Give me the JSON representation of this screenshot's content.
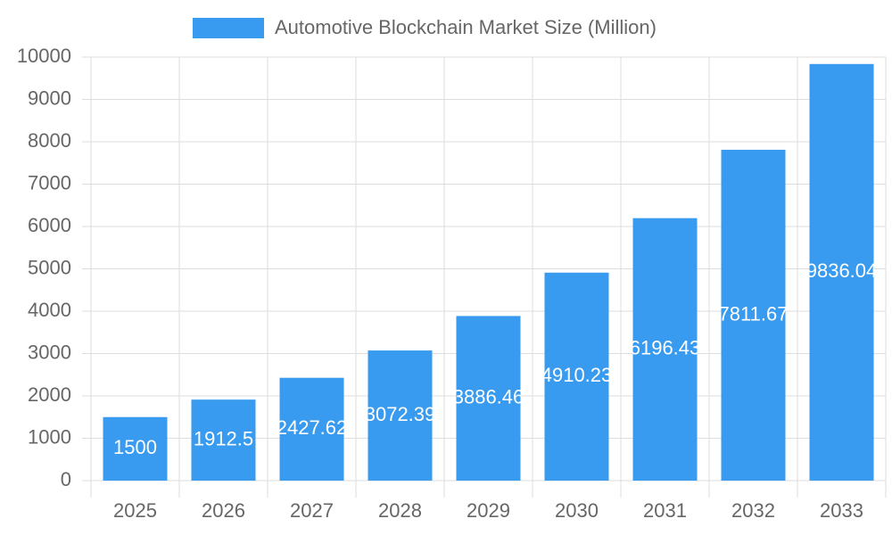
{
  "chart_data": {
    "type": "bar",
    "categories": [
      "2025",
      "2026",
      "2027",
      "2028",
      "2029",
      "2030",
      "2031",
      "2032",
      "2033"
    ],
    "series": [
      {
        "name": "Automotive Blockchain Market Size (Million)",
        "color": "#389bef",
        "values": [
          1500,
          1912.5,
          2427.62,
          3072.39,
          3886.46,
          4910.23,
          6196.43,
          7811.67,
          9836.04
        ]
      }
    ],
    "ylim": [
      0,
      10000
    ],
    "yticks": [
      0,
      1000,
      2000,
      3000,
      4000,
      5000,
      6000,
      7000,
      8000,
      9000,
      10000
    ],
    "grid": true,
    "legend": "top"
  }
}
